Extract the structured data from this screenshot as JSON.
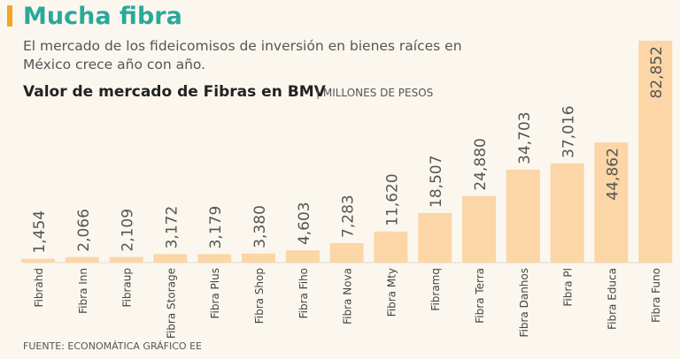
{
  "chart_data": {
    "type": "bar",
    "title": "Mucha fibra",
    "subtitle": "El mercado de los fideicomisos de inversión en bienes raíces en México crece año con año.",
    "chart_title": "Valor de mercado de Fibras en BMV",
    "unit": "| MILLONES DE PESOS",
    "source": "FUENTE: ECONOMÁTICA   GRÁFICO EE",
    "categories": [
      "Fibrahd",
      "Fibra Inn",
      "Fibraup",
      "Fibra Storage",
      "Fibra Plus",
      "Fibra Shop",
      "Fibra Fiho",
      "Fibra Nova",
      "Fibra Mty",
      "Fibramq",
      "Fibra Terra",
      "Fibra Danhos",
      "Fibra Pl",
      "Fibra Educa",
      "Fibra Funo"
    ],
    "values": [
      1454,
      2066,
      2109,
      3172,
      3179,
      3380,
      4603,
      7283,
      11620,
      18507,
      24880,
      34703,
      37016,
      44862,
      82852
    ],
    "value_labels": [
      "1,454",
      "2,066",
      "2,109",
      "3,172",
      "3,179",
      "3,380",
      "4,603",
      "7,283",
      "11,620",
      "18,507",
      "24,880",
      "34,703",
      "37,016",
      "44,862",
      "82,852"
    ],
    "color": "#fcd6a6"
  }
}
